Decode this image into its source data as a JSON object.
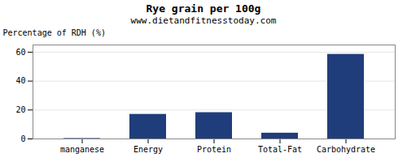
{
  "chart_data": {
    "type": "bar",
    "title": "Rye grain per 100g",
    "subtitle": "www.dietandfitnesstoday.com",
    "ylabel": "Percentage of RDH (%)",
    "categories": [
      "manganese",
      "Energy",
      "Protein",
      "Total-Fat",
      "Carbohydrate"
    ],
    "values": [
      0.3,
      17.0,
      18.2,
      4.0,
      58.5
    ],
    "color": "#1f3d7a",
    "ylim": [
      0,
      65
    ],
    "yticks": [
      0,
      20,
      40,
      60
    ],
    "grid": true
  }
}
